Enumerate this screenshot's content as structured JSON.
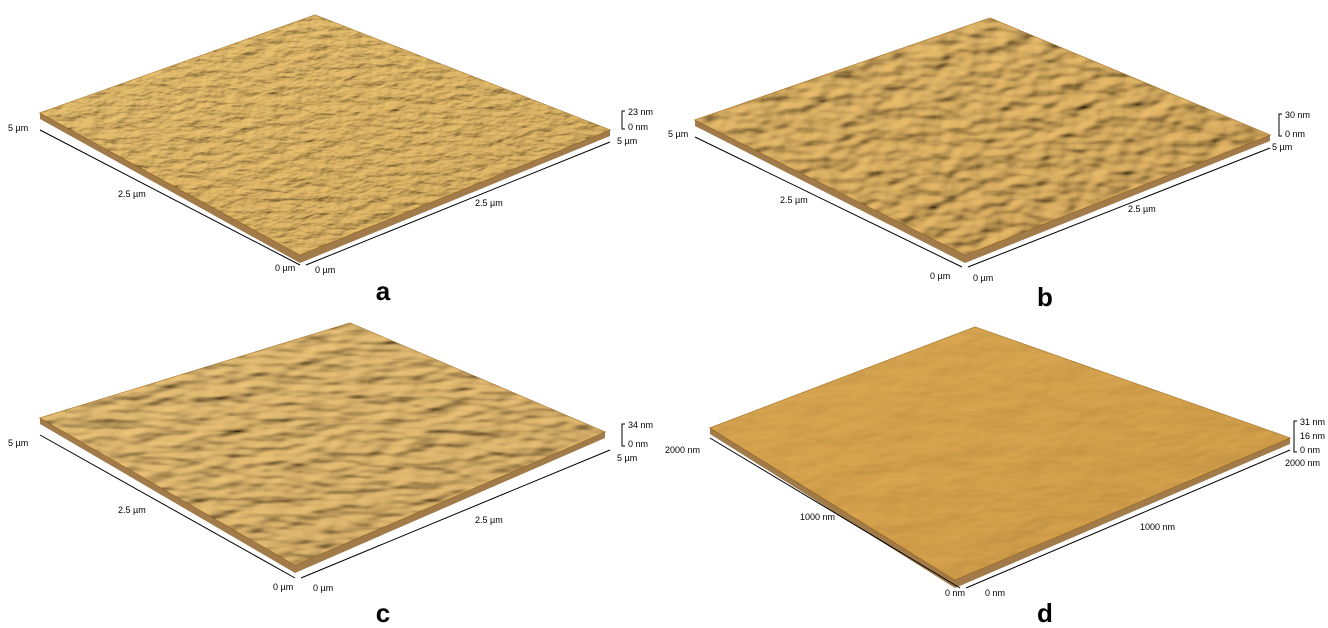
{
  "panels": [
    {
      "label": "a",
      "left_axis": [
        "5 µm",
        "2.5 µm",
        "0 µm"
      ],
      "right_axis": [
        "0 µm",
        "2.5 µm",
        "5 µm"
      ],
      "z_scale": [
        "23 nm",
        "0 nm"
      ]
    },
    {
      "label": "b",
      "left_axis": [
        "5 µm",
        "2.5 µm",
        "0 µm"
      ],
      "right_axis": [
        "0 µm",
        "2.5 µm",
        "5 µm"
      ],
      "z_scale": [
        "30 nm",
        "0 nm"
      ]
    },
    {
      "label": "c",
      "left_axis": [
        "5 µm",
        "2.5 µm",
        "0 µm"
      ],
      "right_axis": [
        "0 µm",
        "2.5 µm",
        "5 µm"
      ],
      "z_scale": [
        "34 nm",
        "0 nm"
      ]
    },
    {
      "label": "d",
      "left_axis": [
        "2000 nm",
        "1000 nm",
        "0 nm"
      ],
      "right_axis": [
        "0 nm",
        "1000 nm",
        "2000 nm"
      ],
      "z_scale": [
        "31 nm",
        "16 nm",
        "0 nm"
      ]
    }
  ]
}
